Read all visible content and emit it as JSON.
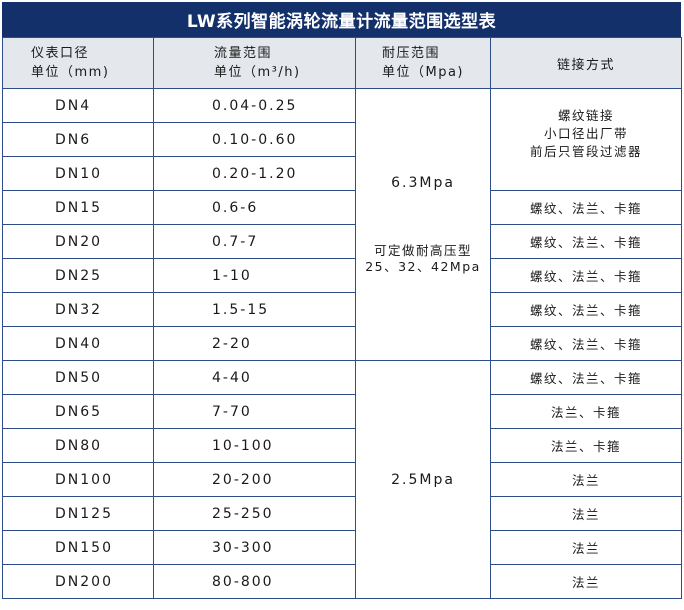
{
  "title": "LW系列智能涡轮流量计流量范围选型表",
  "headers": {
    "diameter": [
      "仪表口径",
      "单位（mm)"
    ],
    "flow": [
      "流量范围",
      "单位（m³/h)"
    ],
    "pressure": [
      "耐压范围",
      "单位（Mpa)"
    ],
    "connection": "链接方式"
  },
  "rows": [
    {
      "dn": "DN4",
      "flow": "0.04-0.25"
    },
    {
      "dn": "DN6",
      "flow": "0.10-0.60"
    },
    {
      "dn": "DN10",
      "flow": "0.20-1.20"
    },
    {
      "dn": "DN15",
      "flow": "0.6-6"
    },
    {
      "dn": "DN20",
      "flow": "0.7-7"
    },
    {
      "dn": "DN25",
      "flow": "1-10"
    },
    {
      "dn": "DN32",
      "flow": "1.5-15"
    },
    {
      "dn": "DN40",
      "flow": "2-20"
    },
    {
      "dn": "DN50",
      "flow": "4-40"
    },
    {
      "dn": "DN65",
      "flow": "7-70"
    },
    {
      "dn": "DN80",
      "flow": "10-100"
    },
    {
      "dn": "DN100",
      "flow": "20-200"
    },
    {
      "dn": "DN125",
      "flow": "25-250"
    },
    {
      "dn": "DN150",
      "flow": "30-300"
    },
    {
      "dn": "DN200",
      "flow": "80-800"
    }
  ],
  "pressure_groups": [
    {
      "value": "6.3Mpa",
      "note": [
        "可定做耐高压型",
        "25、32、42Mpa"
      ]
    },
    {
      "value": "2.5Mpa"
    }
  ],
  "connections": {
    "small": [
      "螺纹链接",
      "小口径出厂带",
      "前后只管段过滤器"
    ],
    "thread_flange_clamp": "螺纹、法兰、卡箍",
    "flange_clamp": "法兰、卡箍",
    "flange": "法兰"
  }
}
